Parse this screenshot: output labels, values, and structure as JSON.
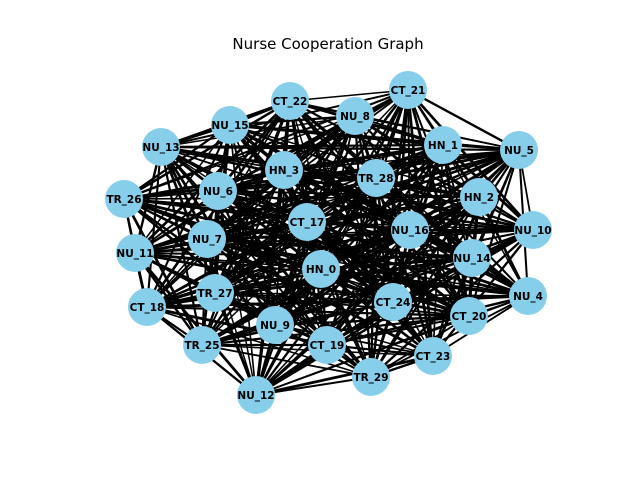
{
  "title": "Nurse Cooperation Graph",
  "colors": {
    "node_fill": "#87CEEB",
    "edge": "#000000",
    "label": "#000000",
    "background": "#ffffff"
  },
  "graph": {
    "nodes": [
      "HN_0",
      "HN_1",
      "HN_2",
      "HN_3",
      "NU_4",
      "NU_5",
      "NU_6",
      "NU_7",
      "NU_8",
      "NU_9",
      "NU_10",
      "NU_11",
      "NU_12",
      "NU_13",
      "NU_14",
      "NU_15",
      "NU_16",
      "CT_17",
      "CT_18",
      "CT_19",
      "CT_20",
      "CT_21",
      "CT_22",
      "CT_23",
      "CT_24",
      "TR_25",
      "TR_26",
      "TR_27",
      "TR_28",
      "TR_29"
    ],
    "edges": "dense (near-complete graph)"
  }
}
